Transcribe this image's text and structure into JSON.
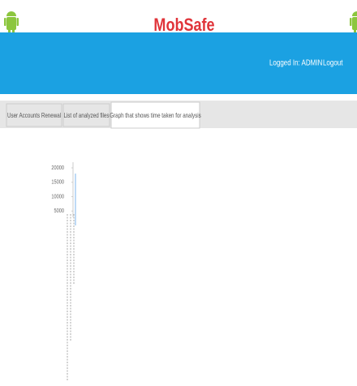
{
  "header": {
    "title": "MobSafe",
    "user": "Logged In: ADMIN",
    "logout": "Logout"
  },
  "tabs": [
    "User Accounts Renewal",
    "List of analyzed files",
    "Graph that shows time taken for analysis"
  ],
  "chart_data": {
    "type": "bar",
    "categories": [
      null
    ],
    "values": [
      18000
    ],
    "color": "#7cb5ec",
    "ylim": [
      0,
      20000
    ],
    "yticks": [
      5000,
      10000,
      15000,
      20000
    ],
    "grid": false
  }
}
